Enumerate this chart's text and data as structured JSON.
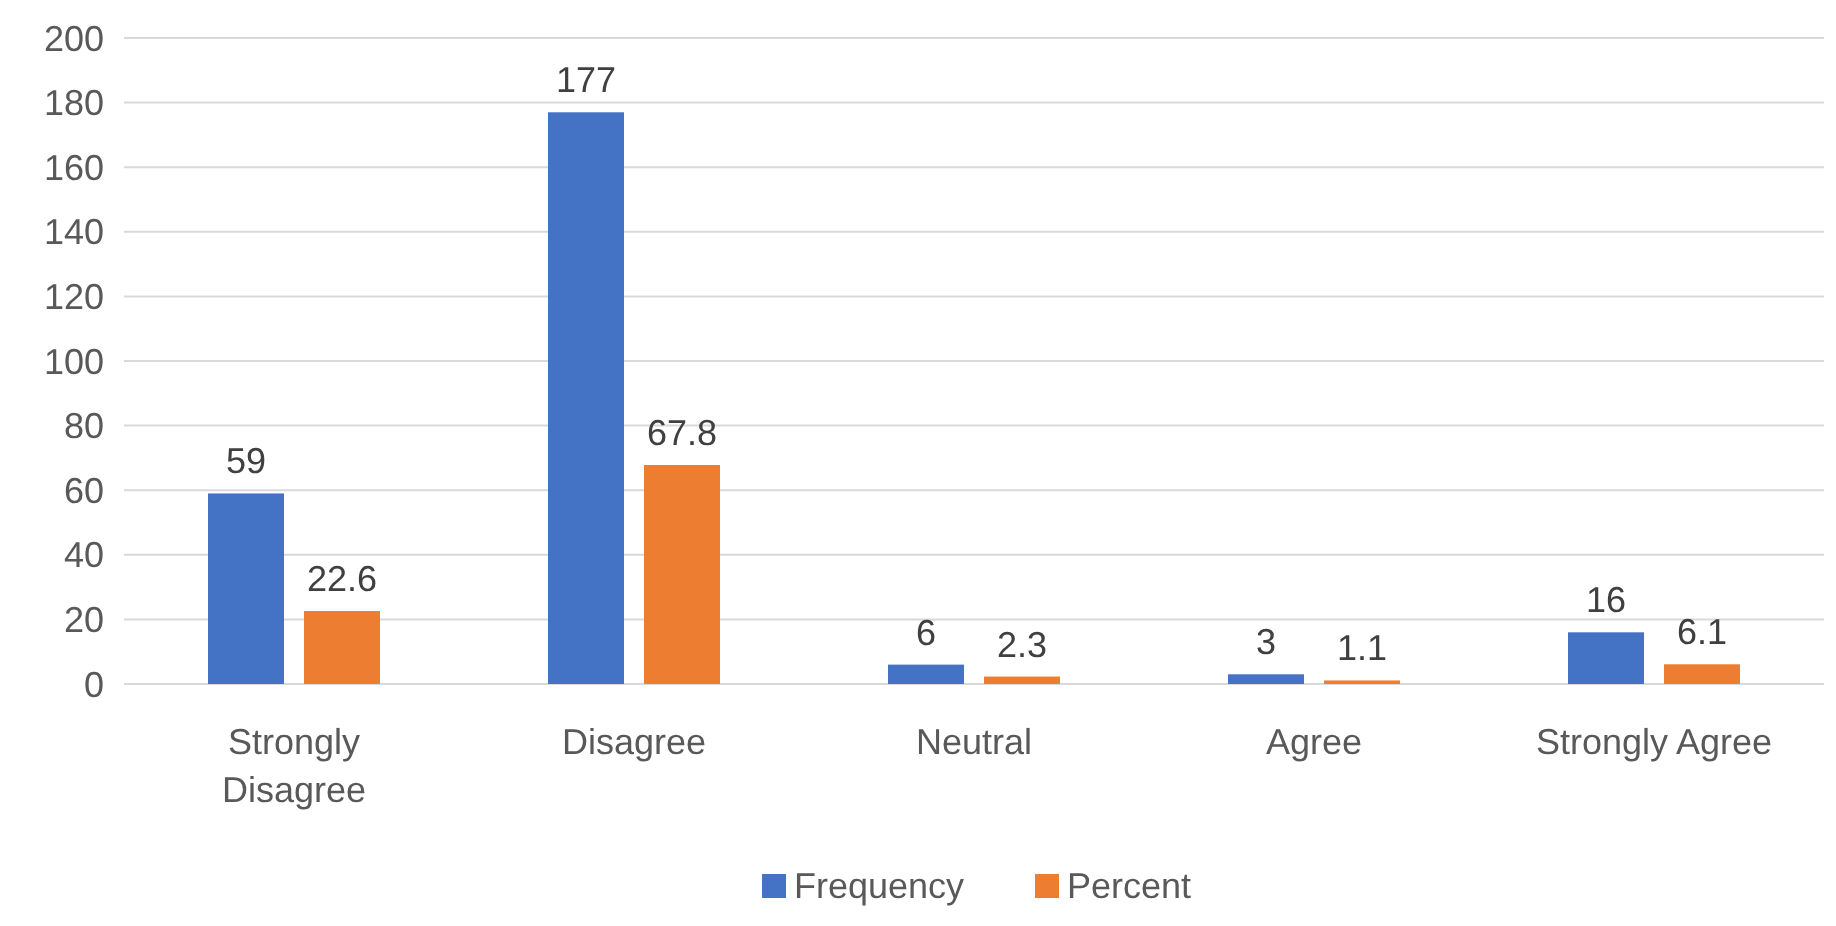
{
  "chart_data": {
    "type": "bar",
    "categories": [
      "Strongly Disagree",
      "Disagree",
      "Neutral",
      "Agree",
      "Strongly Agree"
    ],
    "series": [
      {
        "name": "Frequency",
        "color": "#4472c4",
        "values": [
          59,
          177,
          6,
          3,
          16
        ]
      },
      {
        "name": "Percent",
        "color": "#ed7d31",
        "values": [
          22.6,
          67.8,
          2.3,
          1.1,
          6.1
        ]
      }
    ],
    "ylim": [
      0,
      200
    ],
    "yticks": [
      0,
      20,
      40,
      60,
      80,
      100,
      120,
      140,
      160,
      180,
      200
    ],
    "grid": "y",
    "legend": "bottom",
    "data_labels": true
  }
}
